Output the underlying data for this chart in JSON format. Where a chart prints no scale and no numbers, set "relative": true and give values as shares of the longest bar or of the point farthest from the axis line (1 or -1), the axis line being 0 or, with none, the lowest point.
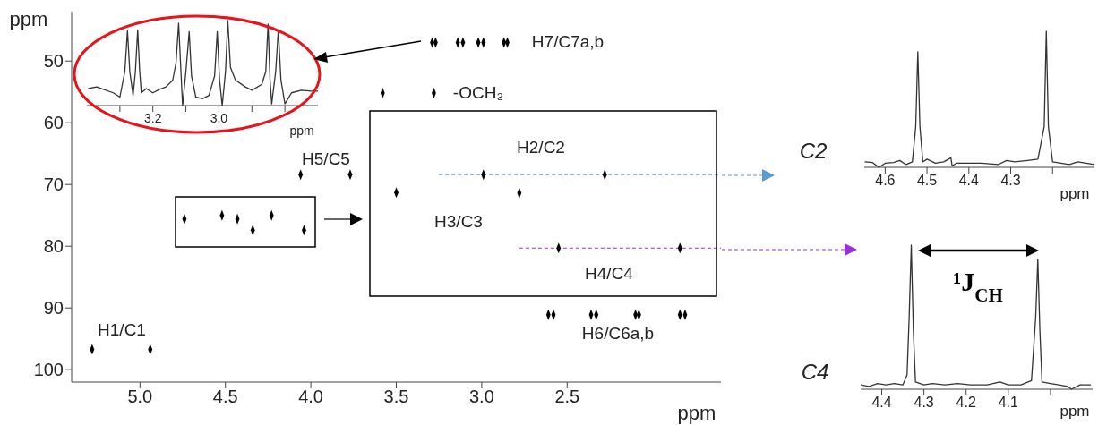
{
  "chart_data": [
    {
      "type": "scatter",
      "xlabel": "ppm",
      "ylabel": "ppm",
      "marker": "diamond",
      "color": "#000000",
      "x": [
        3.29,
        3.27,
        3.14,
        3.11,
        3.02,
        2.99,
        2.87,
        2.85,
        3.58,
        3.28,
        4.06,
        3.77,
        4.74,
        4.52,
        4.43,
        4.34,
        4.23,
        4.04,
        3.5,
        2.99,
        2.78,
        2.28,
        2.55,
        1.84,
        2.61,
        2.58,
        2.36,
        2.33,
        2.1,
        2.08,
        1.84,
        1.81,
        5.28,
        4.94
      ],
      "values": [
        47,
        47,
        47,
        47,
        47,
        47,
        47,
        47,
        55.2,
        55.2,
        68.4,
        68.4,
        75.6,
        75,
        75.6,
        77.4,
        75,
        77.4,
        71.3,
        68.4,
        71.4,
        68.4,
        80.3,
        80.3,
        91.1,
        91.1,
        91.1,
        91.1,
        91.1,
        91.1,
        91.1,
        91.1,
        96.7,
        96.7
      ],
      "xlim": [
        5.4,
        1.6
      ],
      "xticks": [
        {
          "value": 5,
          "label": "5.0"
        },
        4.5,
        {
          "value": 4,
          "label": "4.0"
        },
        3.5,
        {
          "value": 3,
          "label": "3.0"
        },
        2.5
      ],
      "ylim": [
        102,
        42
      ],
      "yticks": [
        50,
        60,
        70,
        80,
        90,
        100
      ],
      "ref_lines": [
        {
          "axis": "y",
          "value": 68.4,
          "color": "#5b9bd5",
          "line_style": "dashed"
        },
        {
          "axis": "y",
          "value": 80.3,
          "color": "#9b30d9",
          "line_style": "dashed"
        }
      ],
      "annotations": [
        "H7/C7a,b",
        "-OCH₃",
        "H5/C5",
        "H2/C2",
        "H3/C3",
        "H4/C4",
        "H6/C6a,b",
        "H1/C1"
      ]
    },
    {
      "type": "line",
      "relative": true,
      "xlabel": "ppm",
      "color": "#333333",
      "x": [
        3.396,
        3.37,
        3.35,
        3.32,
        3.3,
        3.285,
        3.277,
        3.27,
        3.26,
        3.253,
        3.246,
        3.24,
        3.235,
        3.22,
        3.2,
        3.18,
        3.16,
        3.14,
        3.13,
        3.122,
        3.115,
        3.11,
        3.1,
        3.09,
        3.083,
        3.07,
        3.05,
        3.03,
        3.013,
        3.005,
        2.998,
        2.99,
        2.98,
        2.973,
        2.965,
        2.95,
        2.92,
        2.9,
        2.87,
        2.858,
        2.851,
        2.845,
        2.84,
        2.828,
        2.82,
        2.812,
        2.8,
        2.78,
        2.75,
        2.72,
        2.7
      ],
      "values": [
        0.2,
        0.22,
        0.19,
        0.15,
        0.1,
        0.4,
        0.88,
        0.4,
        0.12,
        0.4,
        0.89,
        0.4,
        0.15,
        0.2,
        0.15,
        0.19,
        0.22,
        0.3,
        0.5,
        0.97,
        0.4,
        0,
        0.4,
        0.87,
        0.35,
        0.1,
        0.08,
        0.12,
        0.35,
        0.87,
        0.3,
        0,
        0.4,
        1,
        0.45,
        0.3,
        0.22,
        0.18,
        0.25,
        0.4,
        0.96,
        0.3,
        0.02,
        0.4,
        0.89,
        0.3,
        0.02,
        0.15,
        0.18,
        0.17,
        0.17
      ],
      "xlim": [
        3.4,
        2.7
      ],
      "xticks": [
        {
          "value": 3.3,
          "label": null
        },
        3.2,
        {
          "value": 3.1,
          "label": null
        },
        {
          "value": 3,
          "label": "3.0"
        },
        {
          "value": 2.9,
          "label": null
        },
        {
          "value": 2.8,
          "label": null
        }
      ]
    },
    {
      "type": "line",
      "relative": true,
      "title": "C2",
      "xlabel": "ppm",
      "color": "#333333",
      "x": [
        4.649,
        4.63,
        4.615,
        4.6,
        4.58,
        4.565,
        4.55,
        4.535,
        4.527,
        4.522,
        4.517,
        4.51,
        4.5,
        4.48,
        4.46,
        4.443,
        4.44,
        4.43,
        4.4,
        4.37,
        4.33,
        4.31,
        4.29,
        4.26,
        4.235,
        4.22,
        4.215,
        4.21,
        4.2,
        4.18,
        4.16,
        4.14,
        4.12,
        4.1
      ],
      "values": [
        0.04,
        0.035,
        0,
        0.03,
        0.035,
        0.05,
        0.02,
        0.04,
        0.3,
        0.85,
        0.3,
        0.04,
        0.06,
        0.03,
        0.04,
        0.07,
        0.01,
        0.03,
        0.03,
        0.03,
        0.02,
        0.05,
        0.04,
        0.05,
        0.06,
        0.3,
        1,
        0.3,
        0.04,
        0.03,
        0.02,
        0.04,
        0.03,
        0.02
      ],
      "xlim": [
        4.65,
        4.1
      ],
      "xticks": [
        4.6,
        4.5,
        4.4,
        4.3,
        {
          "value": 4.2,
          "label": null
        }
      ]
    },
    {
      "type": "line",
      "relative": true,
      "title": "C4",
      "xlabel": "ppm",
      "color": "#333333",
      "x": [
        4.45,
        4.43,
        4.41,
        4.39,
        4.37,
        4.35,
        4.34,
        4.335,
        4.33,
        4.325,
        4.32,
        4.3,
        4.28,
        4.25,
        4.22,
        4.19,
        4.15,
        4.12,
        4.1,
        4.07,
        4.045,
        4.035,
        4.03,
        4.025,
        4.02,
        4,
        3.98,
        3.96,
        3.95,
        3.93,
        3.904
      ],
      "values": [
        0.03,
        0.02,
        0.04,
        0.03,
        0.04,
        0.03,
        0.1,
        0.5,
        1,
        0.4,
        0.05,
        0.03,
        0.04,
        0.03,
        0.04,
        0.03,
        0.03,
        0.05,
        0.03,
        0.03,
        0.06,
        0.5,
        0.9,
        0.4,
        0.05,
        0.04,
        0.03,
        0.02,
        0,
        0.03,
        0.03
      ],
      "xlim": [
        4.45,
        3.9
      ],
      "xticks": [
        4.4,
        4.3,
        4.2,
        4.1,
        {
          "value": 4,
          "label": null
        }
      ],
      "annotations": [
        "¹J$_{CH}$"
      ]
    }
  ]
}
